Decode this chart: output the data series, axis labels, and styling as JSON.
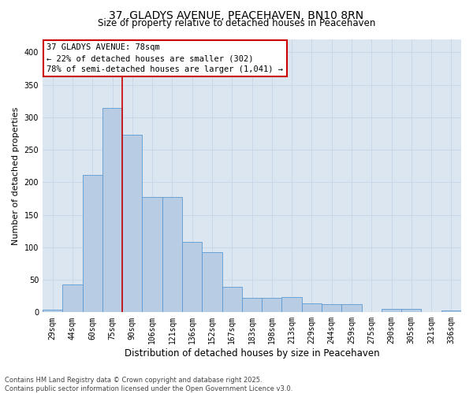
{
  "title1": "37, GLADYS AVENUE, PEACEHAVEN, BN10 8RN",
  "title2": "Size of property relative to detached houses in Peacehaven",
  "xlabel": "Distribution of detached houses by size in Peacehaven",
  "ylabel": "Number of detached properties",
  "categories": [
    "29sqm",
    "44sqm",
    "60sqm",
    "75sqm",
    "90sqm",
    "106sqm",
    "121sqm",
    "136sqm",
    "152sqm",
    "167sqm",
    "183sqm",
    "198sqm",
    "213sqm",
    "229sqm",
    "244sqm",
    "259sqm",
    "275sqm",
    "290sqm",
    "305sqm",
    "321sqm",
    "336sqm"
  ],
  "values": [
    4,
    43,
    212,
    315,
    273,
    178,
    178,
    108,
    93,
    39,
    22,
    22,
    23,
    14,
    13,
    12,
    0,
    5,
    5,
    1,
    3
  ],
  "bar_color": "#b8cce4",
  "bar_edge_color": "#5b9bd5",
  "vline_index": 3,
  "vline_color": "#cc0000",
  "annotation_line1": "37 GLADYS AVENUE: 78sqm",
  "annotation_line2": "← 22% of detached houses are smaller (302)",
  "annotation_line3": "78% of semi-detached houses are larger (1,041) →",
  "annotation_box_color": "#ffffff",
  "annotation_box_edge": "#cc0000",
  "ylim": [
    0,
    420
  ],
  "yticks": [
    0,
    50,
    100,
    150,
    200,
    250,
    300,
    350,
    400
  ],
  "grid_color": "#c8d8e8",
  "background_color": "#dce6f1",
  "footer": "Contains HM Land Registry data © Crown copyright and database right 2025.\nContains public sector information licensed under the Open Government Licence v3.0.",
  "title1_fontsize": 10,
  "title2_fontsize": 8.5,
  "xlabel_fontsize": 8.5,
  "ylabel_fontsize": 8,
  "tick_fontsize": 7,
  "annotation_fontsize": 7.5,
  "footer_fontsize": 6
}
